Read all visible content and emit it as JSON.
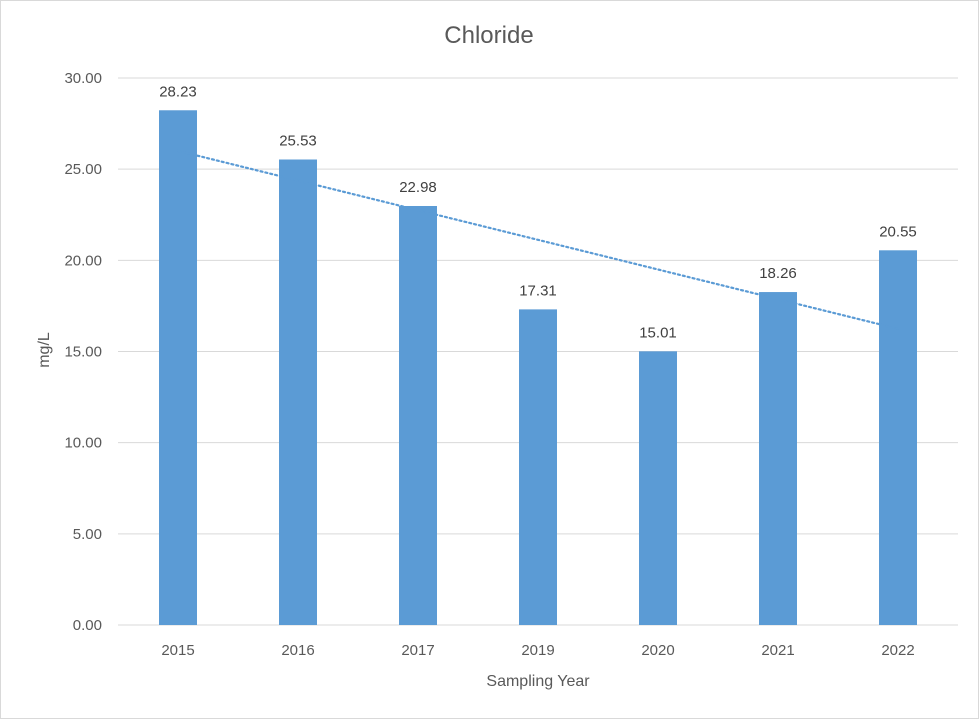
{
  "chart_data": {
    "type": "bar",
    "title": "Chloride",
    "xlabel": "Sampling Year",
    "ylabel": "mg/L",
    "categories": [
      "2015",
      "2016",
      "2017",
      "2019",
      "2020",
      "2021",
      "2022"
    ],
    "values": [
      28.23,
      25.53,
      22.98,
      17.31,
      15.01,
      18.26,
      20.55
    ],
    "data_labels": [
      "28.23",
      "25.53",
      "22.98",
      "17.31",
      "15.01",
      "18.26",
      "20.55"
    ],
    "ylim": [
      0,
      30
    ],
    "y_ticks": [
      "0.00",
      "5.00",
      "10.00",
      "15.00",
      "20.00",
      "25.00",
      "30.00"
    ],
    "grid": true,
    "legend": "none",
    "trendline": {
      "type": "linear",
      "style": "dotted"
    },
    "colors": {
      "bar": "#5b9bd5",
      "trendline": "#5b9bd5",
      "grid": "#d9d9d9",
      "text": "#595959"
    }
  }
}
